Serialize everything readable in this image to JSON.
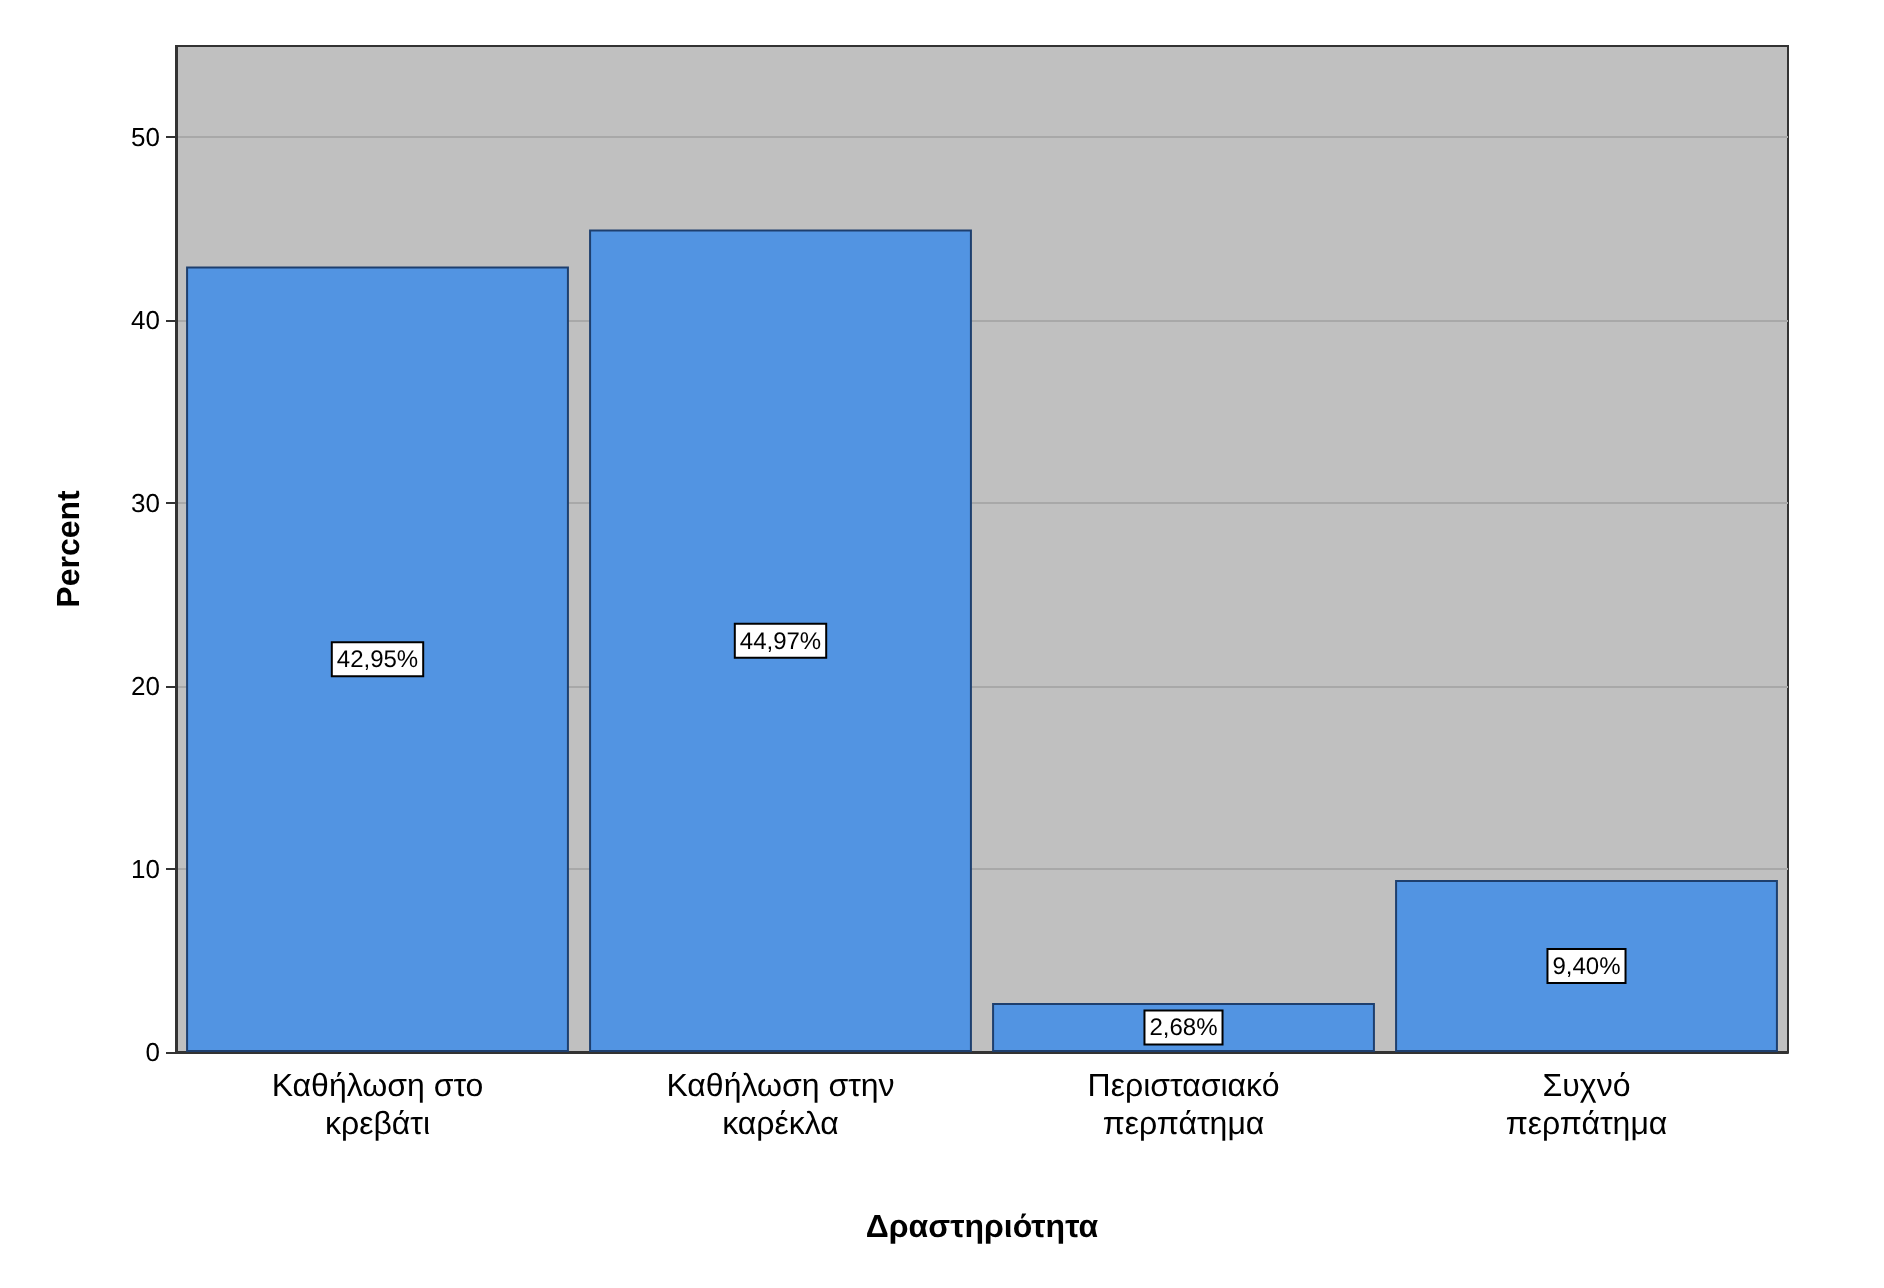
{
  "chart_data": {
    "type": "bar",
    "xlabel": "Δραστηριότητα",
    "ylabel": "Percent",
    "categories": [
      "Καθήλωση στο κρεβάτι",
      "Καθήλωση στην καρέκλα",
      "Περιστασιακό περπάτημα",
      "Συχνό περπάτημα"
    ],
    "values": [
      42.95,
      44.97,
      2.68,
      9.4
    ],
    "value_labels": [
      "42,95%",
      "44,97%",
      "2,68%",
      "9,40%"
    ],
    "color": "#5294e2",
    "ylim": [
      0,
      55
    ],
    "yticks": [
      0,
      10,
      20,
      30,
      40,
      50
    ],
    "grid": "y"
  }
}
